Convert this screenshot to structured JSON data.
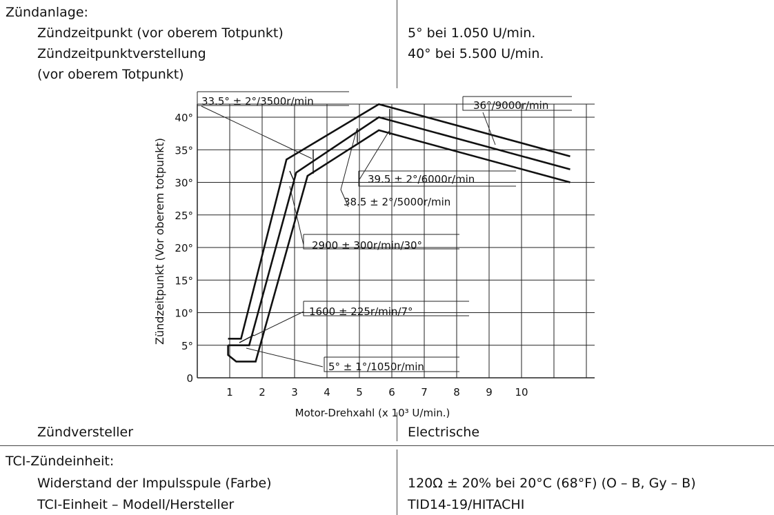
{
  "top": {
    "section_title": "Zündanlage:",
    "rows": [
      {
        "label": "Zündzeitpunkt (vor oberem Totpunkt)",
        "value": "5° bei 1.050 U/min."
      },
      {
        "label": "Zündzeitpunktverstellung",
        "value": "40° bei 5.500 U/min."
      },
      {
        "label": "(vor oberem Totpunkt)",
        "value": ""
      }
    ]
  },
  "middle": {
    "label": "Zündversteller",
    "value": "Electrische"
  },
  "bottom": {
    "section_title": "TCI-Zündeinheit:",
    "rows": [
      {
        "label": "Widerstand der Impulsspule (Farbe)",
        "value": "120Ω ± 20% bei 20°C (68°F) (O – B, Gy – B)"
      },
      {
        "label": "TCI-Einheit – Modell/Hersteller",
        "value": "TID14-19/HITACHI"
      }
    ]
  },
  "chart_data": {
    "type": "line",
    "ylabel": "Zündzeitpunkt (Vor oberem totpunkt)",
    "xlabel": "Motor-Drehxahl (x 10³ U/min.)",
    "x_tick_labels": [
      "1",
      "2",
      "3",
      "4",
      "5",
      "6",
      "7",
      "8",
      "9",
      "10"
    ],
    "y_tick_labels": [
      "0",
      "5°",
      "10°",
      "15°",
      "20°",
      "25°",
      "30°",
      "35°",
      "40°"
    ],
    "xlim": [
      0,
      11.5
    ],
    "ylim": [
      0,
      41
    ],
    "grid": true,
    "series": [
      {
        "values": [
          [
            0.95,
            6
          ],
          [
            1.35,
            6
          ],
          [
            2.75,
            33.5
          ],
          [
            5.6,
            42
          ],
          [
            11.5,
            34
          ]
        ]
      },
      {
        "values": [
          [
            0.95,
            5
          ],
          [
            1.6,
            5
          ],
          [
            3.05,
            31.5
          ],
          [
            5.6,
            40
          ],
          [
            11.5,
            32
          ]
        ]
      },
      {
        "values": [
          [
            0.95,
            5
          ],
          [
            0.95,
            3.5
          ],
          [
            1.2,
            2.5
          ],
          [
            1.8,
            2.5
          ],
          [
            3.4,
            31
          ],
          [
            5.6,
            38
          ],
          [
            11.5,
            30
          ]
        ]
      }
    ],
    "annotations": [
      {
        "text": "33.5° ± 2°/3500r/min"
      },
      {
        "text": "36°/9000r/min"
      },
      {
        "text": "39.5 ± 2°/6000r/min"
      },
      {
        "text": "38.5 ± 2°/5000r/min"
      },
      {
        "text": "2900 ± 300r/min/30°"
      },
      {
        "text": "1600 ± 225r/min/7°"
      },
      {
        "text": "5° ± 1°/1050r/min"
      }
    ]
  }
}
